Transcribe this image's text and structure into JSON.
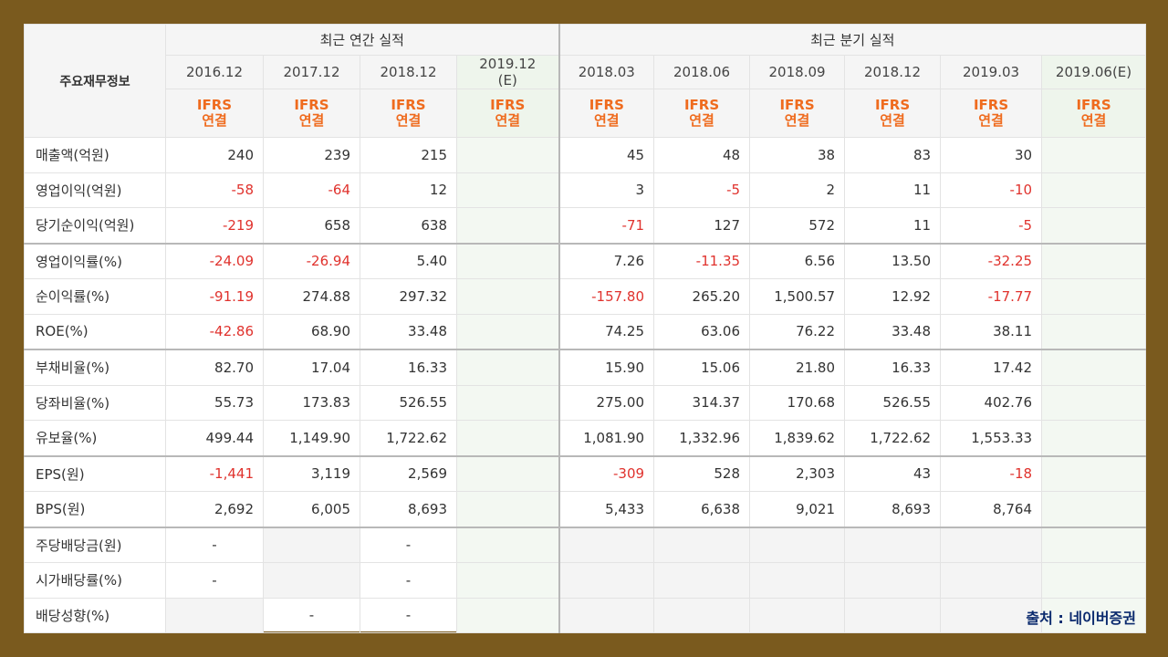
{
  "header": {
    "corner_label": "주요재무정보",
    "annual_group": "최근 연간 실적",
    "quarter_group": "최근 분기 실적",
    "periods": [
      {
        "date": "2016.12",
        "basis": "IFRS\n연결"
      },
      {
        "date": "2017.12",
        "basis": "IFRS\n연결"
      },
      {
        "date": "2018.12",
        "basis": "IFRS\n연결"
      },
      {
        "date": "2019.12\n(E)",
        "basis": "IFRS\n연결",
        "estimate": true
      },
      {
        "date": "2018.03",
        "basis": "IFRS\n연결"
      },
      {
        "date": "2018.06",
        "basis": "IFRS\n연결"
      },
      {
        "date": "2018.09",
        "basis": "IFRS\n연결"
      },
      {
        "date": "2018.12",
        "basis": "IFRS\n연결"
      },
      {
        "date": "2019.03",
        "basis": "IFRS\n연결"
      },
      {
        "date": "2019.06(E)",
        "basis": "IFRS\n연결",
        "estimate": true
      }
    ]
  },
  "rows": [
    {
      "label": "매출액(억원)",
      "values": [
        "240",
        "239",
        "215",
        "",
        "45",
        "48",
        "38",
        "83",
        "30",
        ""
      ]
    },
    {
      "label": "영업이익(억원)",
      "values": [
        "-58",
        "-64",
        "12",
        "",
        "3",
        "-5",
        "2",
        "11",
        "-10",
        ""
      ]
    },
    {
      "label": "당기순이익(억원)",
      "values": [
        "-219",
        "658",
        "638",
        "",
        "-71",
        "127",
        "572",
        "11",
        "-5",
        ""
      ]
    },
    {
      "label": "영업이익률(%)",
      "values": [
        "-24.09",
        "-26.94",
        "5.40",
        "",
        "7.26",
        "-11.35",
        "6.56",
        "13.50",
        "-32.25",
        ""
      ]
    },
    {
      "label": "순이익률(%)",
      "values": [
        "-91.19",
        "274.88",
        "297.32",
        "",
        "-157.80",
        "265.20",
        "1,500.57",
        "12.92",
        "-17.77",
        ""
      ]
    },
    {
      "label": "ROE(%)",
      "values": [
        "-42.86",
        "68.90",
        "33.48",
        "",
        "74.25",
        "63.06",
        "76.22",
        "33.48",
        "38.11",
        ""
      ]
    },
    {
      "label": "부채비율(%)",
      "values": [
        "82.70",
        "17.04",
        "16.33",
        "",
        "15.90",
        "15.06",
        "21.80",
        "16.33",
        "17.42",
        ""
      ]
    },
    {
      "label": "당좌비율(%)",
      "values": [
        "55.73",
        "173.83",
        "526.55",
        "",
        "275.00",
        "314.37",
        "170.68",
        "526.55",
        "402.76",
        ""
      ]
    },
    {
      "label": "유보율(%)",
      "values": [
        "499.44",
        "1,149.90",
        "1,722.62",
        "",
        "1,081.90",
        "1,332.96",
        "1,839.62",
        "1,722.62",
        "1,553.33",
        ""
      ]
    },
    {
      "label": "EPS(원)",
      "values": [
        "-1,441",
        "3,119",
        "2,569",
        "",
        "-309",
        "528",
        "2,303",
        "43",
        "-18",
        ""
      ]
    },
    {
      "label": "BPS(원)",
      "values": [
        "2,692",
        "6,005",
        "8,693",
        "",
        "5,433",
        "6,638",
        "9,021",
        "8,693",
        "8,764",
        ""
      ]
    },
    {
      "label": "주당배당금(원)",
      "values": [
        "-",
        "",
        "-",
        "",
        "",
        "",
        "",
        "",
        "",
        ""
      ]
    },
    {
      "label": "시가배당률(%)",
      "values": [
        "-",
        "",
        "-",
        "",
        "",
        "",
        "",
        "",
        "",
        ""
      ]
    },
    {
      "label": "배당성향(%)",
      "values": [
        "",
        "-",
        "-",
        "",
        "",
        "",
        "",
        "",
        "",
        ""
      ]
    }
  ],
  "source_note": "출처 : 네이버증권",
  "colors": {
    "negative": "#e0322d",
    "ifrs": "#ef6b1e",
    "background_frame": "#7a5a1e",
    "estimate_column": "#f3f8f2"
  }
}
